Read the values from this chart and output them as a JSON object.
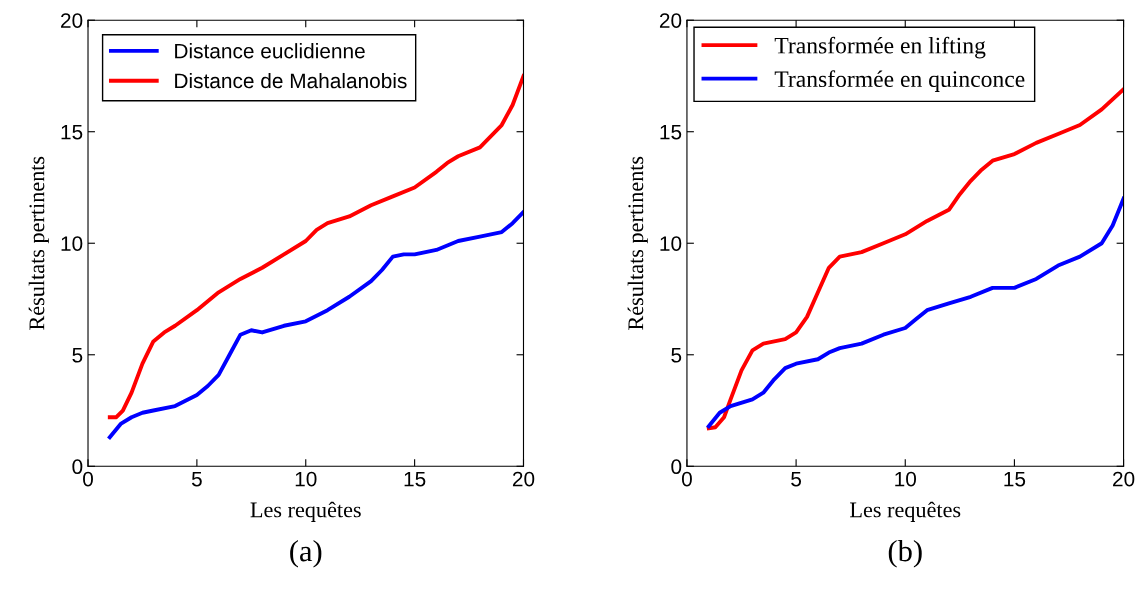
{
  "chart_data": [
    {
      "type": "line",
      "xlabel": "Les requêtes",
      "ylabel": "Résultats pertinents",
      "xlim": [
        0,
        20
      ],
      "ylim": [
        0,
        20
      ],
      "xticks": [
        0,
        5,
        10,
        15,
        20
      ],
      "yticks": [
        0,
        5,
        10,
        15,
        20
      ],
      "grid": false,
      "legend": "top left",
      "annotations": [
        "(a)"
      ],
      "series": [
        {
          "name": "Distance euclidienne",
          "color": "#0000ff",
          "x": [
            1,
            1.5,
            2,
            2.5,
            3,
            4,
            5,
            5.5,
            6,
            6.5,
            7,
            7.5,
            8,
            9,
            10,
            11,
            12,
            13,
            13.5,
            14,
            14.5,
            15,
            16,
            17,
            18,
            19,
            19.5,
            20
          ],
          "values": [
            1.3,
            1.9,
            2.2,
            2.4,
            2.5,
            2.7,
            3.2,
            3.6,
            4.1,
            5.0,
            5.9,
            6.1,
            6.0,
            6.3,
            6.5,
            7.0,
            7.6,
            8.3,
            8.8,
            9.4,
            9.5,
            9.5,
            9.7,
            10.1,
            10.3,
            10.5,
            10.9,
            11.4
          ]
        },
        {
          "name": "Distance de Mahalanobis",
          "color": "#ff0000",
          "x": [
            1,
            1.3,
            1.6,
            2,
            2.5,
            3,
            3.5,
            4,
            5,
            6,
            7,
            8,
            9,
            10,
            10.5,
            11,
            12,
            13,
            14,
            15,
            16,
            16.5,
            17,
            18,
            19,
            19.5,
            20
          ],
          "values": [
            2.2,
            2.2,
            2.5,
            3.3,
            4.6,
            5.6,
            6.0,
            6.3,
            7.0,
            7.8,
            8.4,
            8.9,
            9.5,
            10.1,
            10.6,
            10.9,
            11.2,
            11.7,
            12.1,
            12.5,
            13.2,
            13.6,
            13.9,
            14.3,
            15.3,
            16.2,
            17.5
          ]
        }
      ]
    },
    {
      "type": "line",
      "xlabel": "Les requêtes",
      "ylabel": "Résultats pertinents",
      "xlim": [
        0,
        20
      ],
      "ylim": [
        0,
        20
      ],
      "xticks": [
        0,
        5,
        10,
        15,
        20
      ],
      "yticks": [
        0,
        5,
        10,
        15,
        20
      ],
      "grid": false,
      "legend": "top left",
      "annotations": [
        "(b)"
      ],
      "series": [
        {
          "name": "Transformée en lifting",
          "color": "#ff0000",
          "x": [
            1,
            1.3,
            1.7,
            2,
            2.5,
            3,
            3.5,
            4,
            4.5,
            5,
            5.5,
            6,
            6.5,
            7,
            7.5,
            8,
            9,
            10,
            11,
            12,
            12.5,
            13,
            13.5,
            14,
            15,
            16,
            17,
            18,
            19,
            20
          ],
          "values": [
            1.7,
            1.75,
            2.2,
            3.0,
            4.3,
            5.2,
            5.5,
            5.6,
            5.7,
            6.0,
            6.7,
            7.8,
            8.9,
            9.4,
            9.5,
            9.6,
            10.0,
            10.4,
            11.0,
            11.5,
            12.2,
            12.8,
            13.3,
            13.7,
            14.0,
            14.5,
            14.9,
            15.3,
            16.0,
            16.9
          ]
        },
        {
          "name": "Transformée en quinconce",
          "color": "#0000ff",
          "x": [
            1,
            1.5,
            2,
            3,
            3.5,
            4,
            4.5,
            5,
            6,
            6.5,
            7,
            8,
            9,
            10,
            10.5,
            11,
            12,
            13,
            14,
            15,
            16,
            17,
            18,
            19,
            19.5,
            20
          ],
          "values": [
            1.8,
            2.4,
            2.7,
            3.0,
            3.3,
            3.9,
            4.4,
            4.6,
            4.8,
            5.1,
            5.3,
            5.5,
            5.9,
            6.2,
            6.6,
            7.0,
            7.3,
            7.6,
            8.0,
            8.0,
            8.4,
            9.0,
            9.4,
            10.0,
            10.8,
            12.0
          ]
        }
      ]
    }
  ]
}
